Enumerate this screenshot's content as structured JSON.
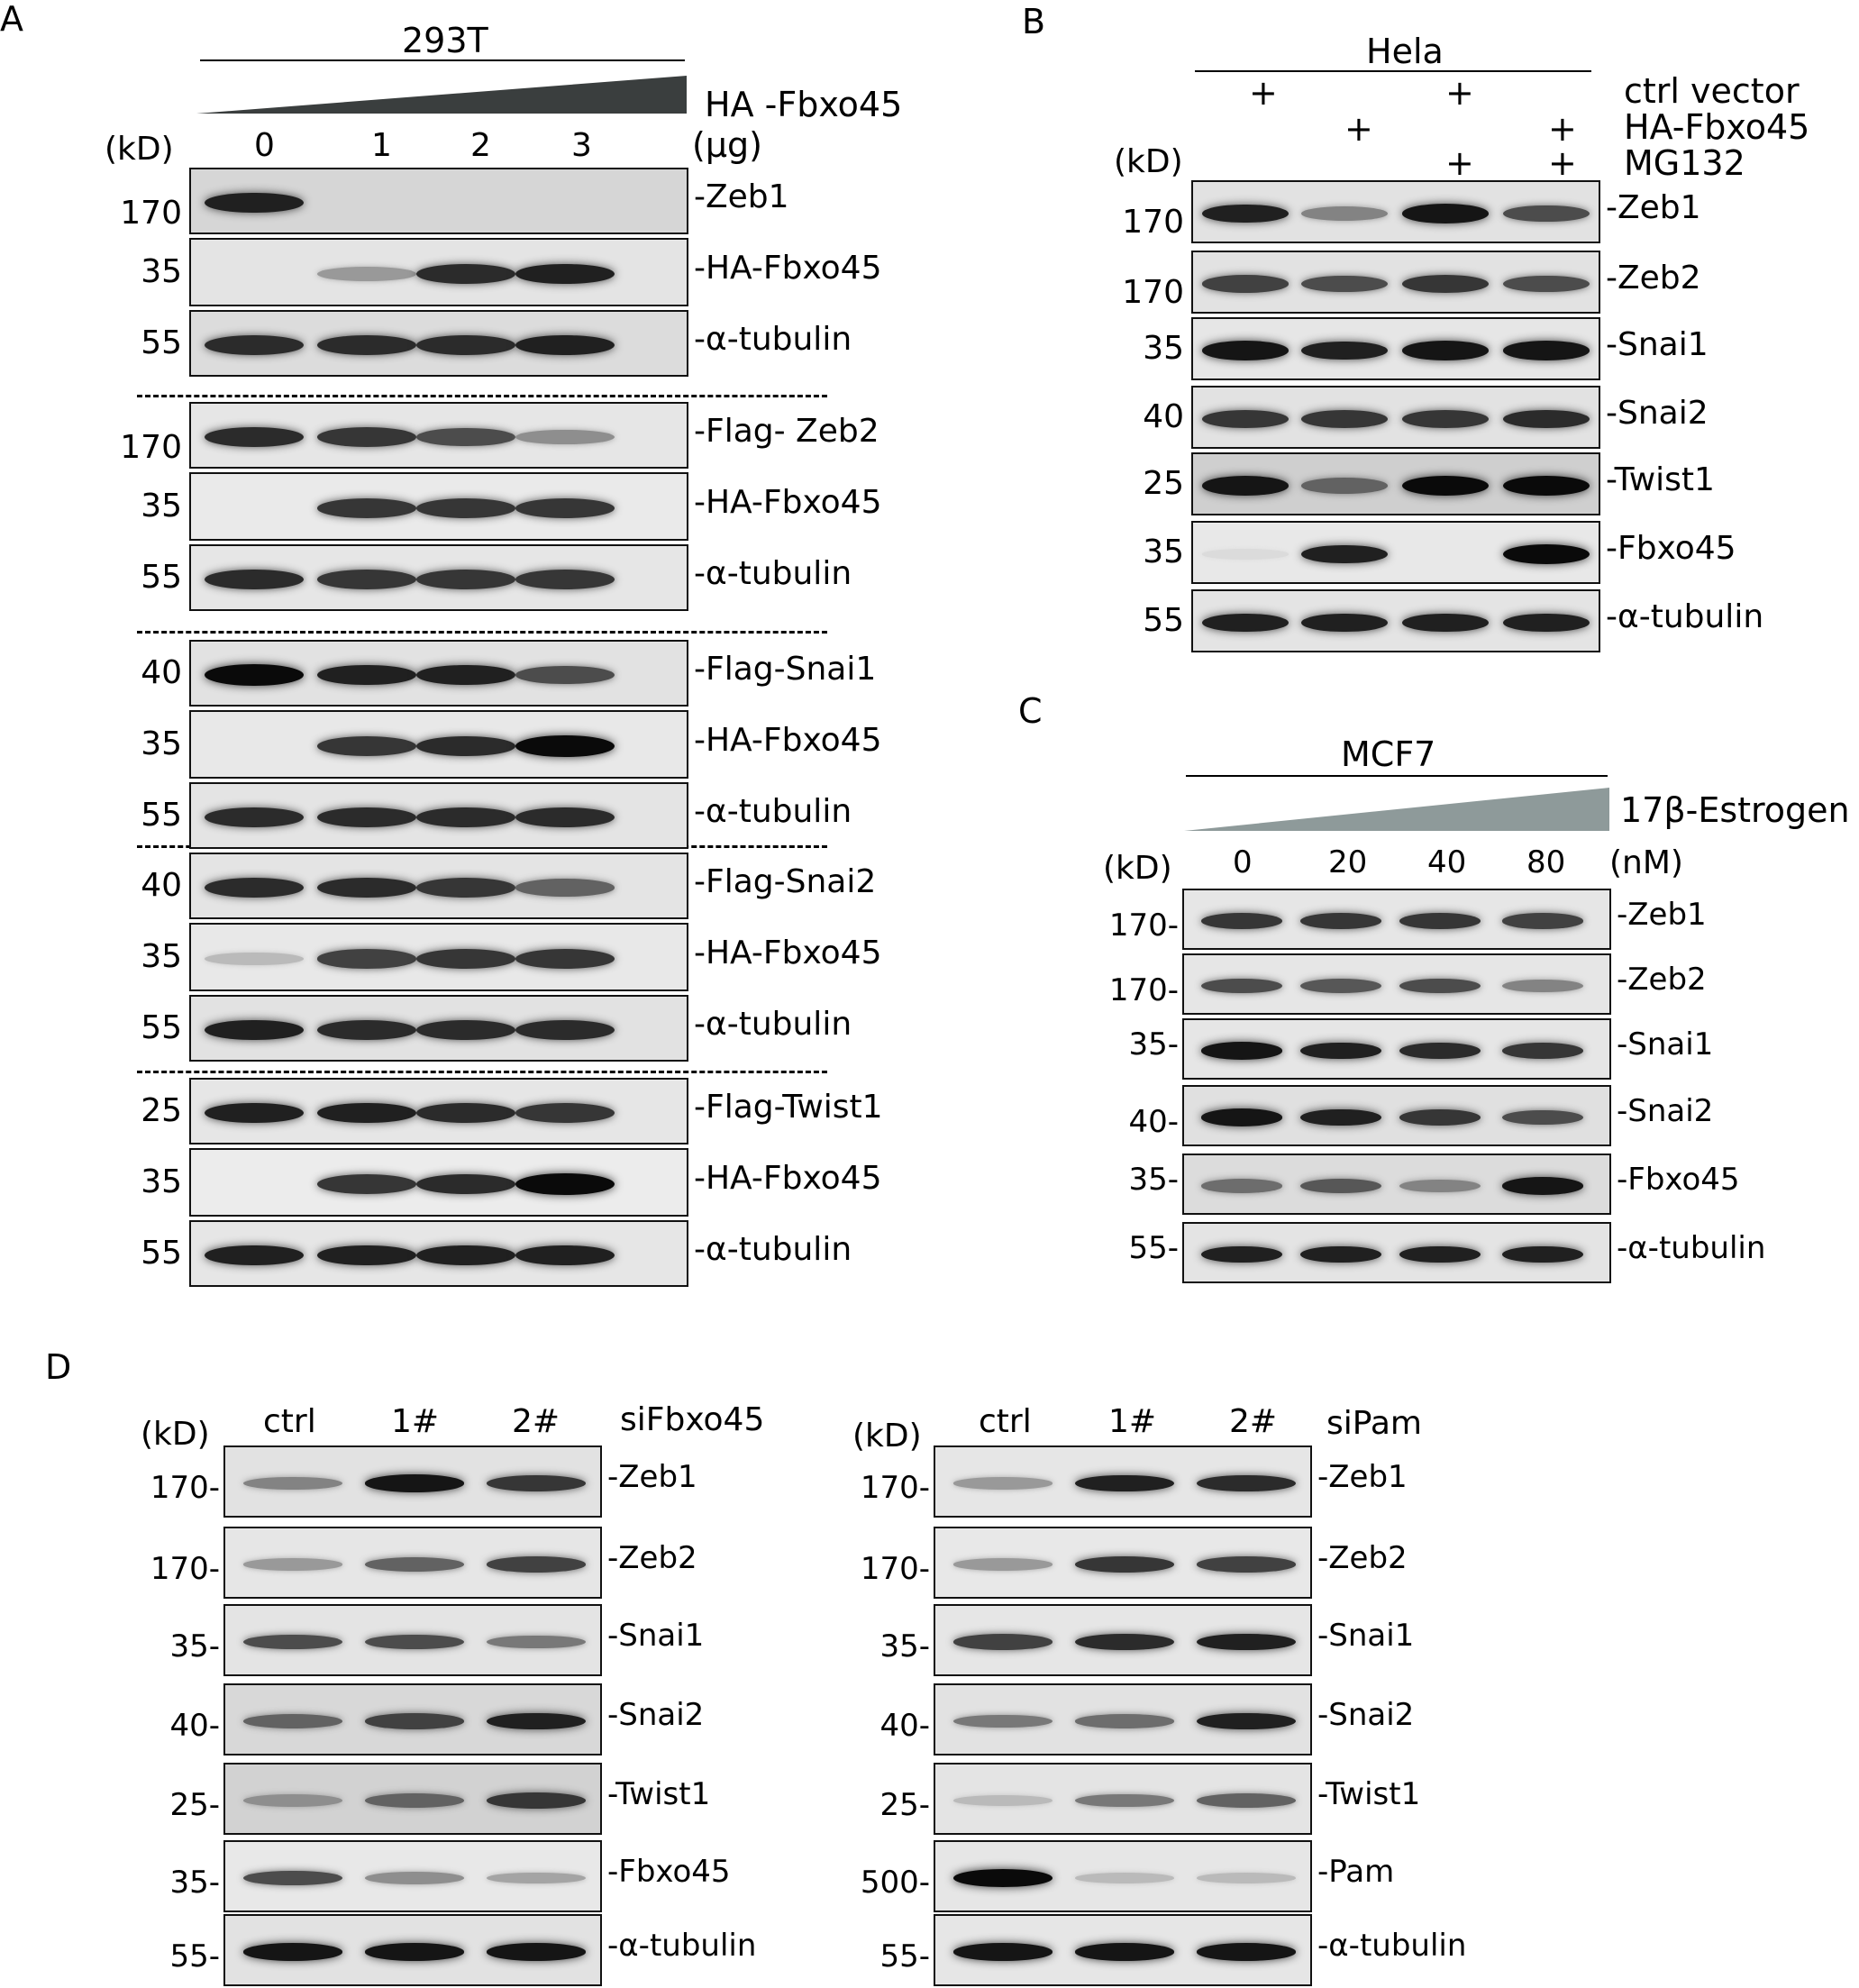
{
  "panel_A": {
    "letter": "A",
    "cell_line": "293T",
    "treatment": "HA -Fbxo45",
    "kd": "(kD)",
    "unit": "(µg)",
    "lanes": [
      "0",
      "1",
      "2",
      "3"
    ],
    "groups": [
      [
        {
          "marker": "170",
          "label": "-Zeb1",
          "intensity": [
            0.9,
            0.0,
            0.0,
            0.0
          ],
          "bg": "#d6d6d6"
        },
        {
          "marker": "35",
          "label": "-HA-Fbxo45",
          "intensity": [
            0.0,
            0.35,
            0.85,
            0.9
          ],
          "bg": "#e4e4e4"
        },
        {
          "marker": "55",
          "label": "-α-tubulin",
          "intensity": [
            0.85,
            0.85,
            0.85,
            0.9
          ],
          "bg": "#dcdcdc"
        }
      ],
      [
        {
          "marker": "170",
          "label": "-Flag- Zeb2",
          "intensity": [
            0.85,
            0.8,
            0.7,
            0.4
          ],
          "bg": "#e6e6e6"
        },
        {
          "marker": "35",
          "label": "-HA-Fbxo45",
          "intensity": [
            0.0,
            0.8,
            0.8,
            0.8
          ],
          "bg": "#eaeaea"
        },
        {
          "marker": "55",
          "label": "-α-tubulin",
          "intensity": [
            0.85,
            0.8,
            0.8,
            0.8
          ],
          "bg": "#e6e6e6"
        }
      ],
      [
        {
          "marker": "40",
          "label": "-Flag-Snai1",
          "intensity": [
            1.0,
            0.9,
            0.9,
            0.7
          ],
          "bg": "#e2e2e2"
        },
        {
          "marker": "35",
          "label": "-HA-Fbxo45",
          "intensity": [
            0.0,
            0.8,
            0.85,
            1.0
          ],
          "bg": "#e8e8e8"
        },
        {
          "marker": "55",
          "label": "-α-tubulin",
          "intensity": [
            0.85,
            0.85,
            0.85,
            0.85
          ],
          "bg": "#e4e4e4"
        }
      ],
      [
        {
          "marker": "40",
          "label": "-Flag-Snai2",
          "intensity": [
            0.85,
            0.85,
            0.8,
            0.6
          ],
          "bg": "#e4e4e4"
        },
        {
          "marker": "35",
          "label": "-HA-Fbxo45",
          "intensity": [
            0.2,
            0.75,
            0.8,
            0.8
          ],
          "bg": "#e8e8e8"
        },
        {
          "marker": "55",
          "label": "-α-tubulin",
          "intensity": [
            0.9,
            0.85,
            0.85,
            0.85
          ],
          "bg": "#e2e2e2"
        }
      ],
      [
        {
          "marker": "25",
          "label": "-Flag-Twist1",
          "intensity": [
            0.9,
            0.9,
            0.85,
            0.8
          ],
          "bg": "#e6e6e6"
        },
        {
          "marker": "35",
          "label": "-HA-Fbxo45",
          "intensity": [
            0.0,
            0.8,
            0.85,
            1.0
          ],
          "bg": "#ececec"
        },
        {
          "marker": "55",
          "label": "-α-tubulin",
          "intensity": [
            0.9,
            0.9,
            0.9,
            0.9
          ],
          "bg": "#e6e6e6"
        }
      ]
    ]
  },
  "panel_B": {
    "letter": "B",
    "cell_line": "Hela",
    "kd": "(kD)",
    "conditions": [
      {
        "label": "ctrl   vector",
        "signs": [
          "+",
          "",
          "+",
          ""
        ]
      },
      {
        "label": "HA-Fbxo45",
        "signs": [
          "",
          "+",
          "",
          "+"
        ]
      },
      {
        "label": "MG132",
        "signs": [
          "",
          "",
          "+",
          "+"
        ]
      }
    ],
    "rows": [
      {
        "marker": "170",
        "label": "-Zeb1",
        "intensity": [
          0.9,
          0.45,
          0.95,
          0.7
        ],
        "bg": "#e2e2e2"
      },
      {
        "marker": "170",
        "label": "-Zeb2",
        "intensity": [
          0.75,
          0.7,
          0.8,
          0.7
        ],
        "bg": "#e2e2e2"
      },
      {
        "marker": "35",
        "label": "-Snai1",
        "intensity": [
          0.95,
          0.9,
          0.95,
          0.95
        ],
        "bg": "#e6e6e6"
      },
      {
        "marker": "40",
        "label": "-Snai2",
        "intensity": [
          0.8,
          0.8,
          0.8,
          0.85
        ],
        "bg": "#e2e2e2"
      },
      {
        "marker": "25",
        "label": "-Twist1",
        "intensity": [
          0.95,
          0.6,
          1.0,
          1.0
        ],
        "bg": "#cfcfcf"
      },
      {
        "marker": "35",
        "label": "-Fbxo45",
        "intensity": [
          0.05,
          0.9,
          0.0,
          1.0
        ],
        "bg": "#e8e8e8"
      },
      {
        "marker": "55",
        "label": "-α-tubulin",
        "intensity": [
          0.9,
          0.9,
          0.9,
          0.9
        ],
        "bg": "#e4e4e4"
      }
    ]
  },
  "panel_C": {
    "letter": "C",
    "cell_line": "MCF7",
    "treatment": "17β-Estrogen",
    "kd": "(kD)",
    "unit": "(nM)",
    "lanes": [
      "0",
      "20",
      "40",
      "80"
    ],
    "rows": [
      {
        "marker": "170-",
        "label": "-Zeb1",
        "intensity": [
          0.8,
          0.8,
          0.8,
          0.75
        ],
        "bg": "#e6e6e6"
      },
      {
        "marker": "170-",
        "label": "-Zeb2",
        "intensity": [
          0.7,
          0.65,
          0.7,
          0.45
        ],
        "bg": "#e6e6e6"
      },
      {
        "marker": "35-",
        "label": "-Snai1",
        "intensity": [
          0.95,
          0.9,
          0.85,
          0.8
        ],
        "bg": "#e6e6e6"
      },
      {
        "marker": "40-",
        "label": "-Snai2",
        "intensity": [
          0.95,
          0.9,
          0.8,
          0.7
        ],
        "bg": "#e0e0e0"
      },
      {
        "marker": "35-",
        "label": "-Fbxo45",
        "intensity": [
          0.55,
          0.65,
          0.45,
          0.95
        ],
        "bg": "#dcdcdc"
      },
      {
        "marker": "55-",
        "label": "-α-tubulin",
        "intensity": [
          0.9,
          0.9,
          0.9,
          0.9
        ],
        "bg": "#e4e4e4"
      }
    ]
  },
  "panel_D": {
    "letter": "D",
    "kd": "(kD)",
    "left": {
      "condition": "siFbxo45",
      "lanes": [
        "ctrl",
        "1#",
        "2#"
      ],
      "rows": [
        {
          "marker": "170-",
          "label": "-Zeb1",
          "intensity": [
            0.45,
            0.95,
            0.8
          ],
          "bg": "#e2e2e2"
        },
        {
          "marker": "170-",
          "label": "-Zeb2",
          "intensity": [
            0.35,
            0.6,
            0.75
          ],
          "bg": "#e6e6e6"
        },
        {
          "marker": "35-",
          "label": "-Snai1",
          "intensity": [
            0.7,
            0.7,
            0.5
          ],
          "bg": "#e4e4e4"
        },
        {
          "marker": "40-",
          "label": "-Snai2",
          "intensity": [
            0.6,
            0.75,
            0.9
          ],
          "bg": "#d8d8d8"
        },
        {
          "marker": "25-",
          "label": "-Twist1",
          "intensity": [
            0.4,
            0.6,
            0.8
          ],
          "bg": "#d2d2d2"
        },
        {
          "marker": "35-",
          "label": "-Fbxo45",
          "intensity": [
            0.7,
            0.4,
            0.3
          ],
          "bg": "#e8e8e8"
        },
        {
          "marker": "55-",
          "label": "-α-tubulin",
          "intensity": [
            0.95,
            0.95,
            0.95
          ],
          "bg": "#e2e2e2"
        }
      ]
    },
    "right": {
      "condition": "siPam",
      "lanes": [
        "ctrl",
        "1#",
        "2#"
      ],
      "rows": [
        {
          "marker": "170-",
          "label": "-Zeb1",
          "intensity": [
            0.35,
            0.9,
            0.85
          ],
          "bg": "#e6e6e6"
        },
        {
          "marker": "170-",
          "label": "-Zeb2",
          "intensity": [
            0.35,
            0.8,
            0.75
          ],
          "bg": "#e8e8e8"
        },
        {
          "marker": "35-",
          "label": "-Snai1",
          "intensity": [
            0.75,
            0.85,
            0.9
          ],
          "bg": "#e6e6e6"
        },
        {
          "marker": "40-",
          "label": "-Snai2",
          "intensity": [
            0.5,
            0.55,
            0.9
          ],
          "bg": "#e2e2e2"
        },
        {
          "marker": "25-",
          "label": "-Twist1",
          "intensity": [
            0.2,
            0.5,
            0.6
          ],
          "bg": "#e4e4e4"
        },
        {
          "marker": "500-",
          "label": "-Pam",
          "intensity": [
            1.0,
            0.2,
            0.2
          ],
          "bg": "#e6e6e6"
        },
        {
          "marker": "55-",
          "label": "-α-tubulin",
          "intensity": [
            0.95,
            0.95,
            0.95
          ],
          "bg": "#e6e6e6"
        }
      ]
    }
  }
}
